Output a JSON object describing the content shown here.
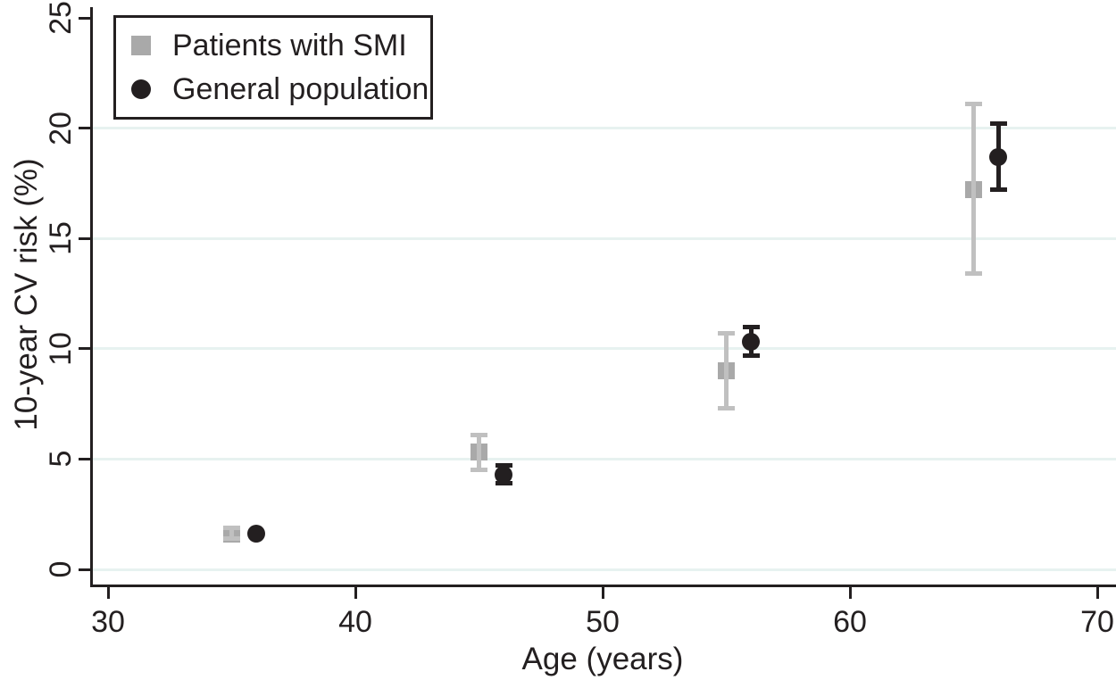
{
  "chart_data": {
    "type": "scatter",
    "title": "",
    "xlabel": "Age (years)",
    "ylabel": "10-year CV risk (%)",
    "xlim": [
      29.3,
      70.8
    ],
    "ylim": [
      0,
      25.8
    ],
    "xticks": [
      30,
      40,
      50,
      60,
      70
    ],
    "yticks": [
      0,
      5,
      10,
      15,
      20,
      25
    ],
    "gridlines_y": [
      0,
      5,
      10,
      15,
      20
    ],
    "grid": "horizontal-only",
    "legend_position": "top-left",
    "colors": {
      "smi_marker": "#a9a9a9",
      "smi_errorbar": "#c0c0c0",
      "general_marker": "#231f20",
      "general_errorbar": "#231f20",
      "gridline": "#e7f2f0",
      "axis": "#231f20",
      "background": "#ffffff"
    },
    "series": [
      {
        "name": "Patients with SMI",
        "marker": "square",
        "color": "#a9a9a9",
        "errorbar_color": "#c0c0c0",
        "points": [
          {
            "x": 35,
            "y": 1.6,
            "ci_low": 1.4,
            "ci_high": 1.9
          },
          {
            "x": 45,
            "y": 5.3,
            "ci_low": 4.5,
            "ci_high": 6.1
          },
          {
            "x": 55,
            "y": 9.0,
            "ci_low": 7.3,
            "ci_high": 10.7
          },
          {
            "x": 65,
            "y": 17.2,
            "ci_low": 13.4,
            "ci_high": 21.1
          }
        ]
      },
      {
        "name": "General population",
        "marker": "circle",
        "color": "#231f20",
        "errorbar_color": "#231f20",
        "points": [
          {
            "x": 36,
            "y": 1.6,
            "ci_low": 1.6,
            "ci_high": 1.6
          },
          {
            "x": 46,
            "y": 4.3,
            "ci_low": 3.9,
            "ci_high": 4.7
          },
          {
            "x": 56,
            "y": 10.3,
            "ci_low": 9.7,
            "ci_high": 11.0
          },
          {
            "x": 66,
            "y": 18.7,
            "ci_low": 17.2,
            "ci_high": 20.2
          }
        ]
      }
    ]
  }
}
